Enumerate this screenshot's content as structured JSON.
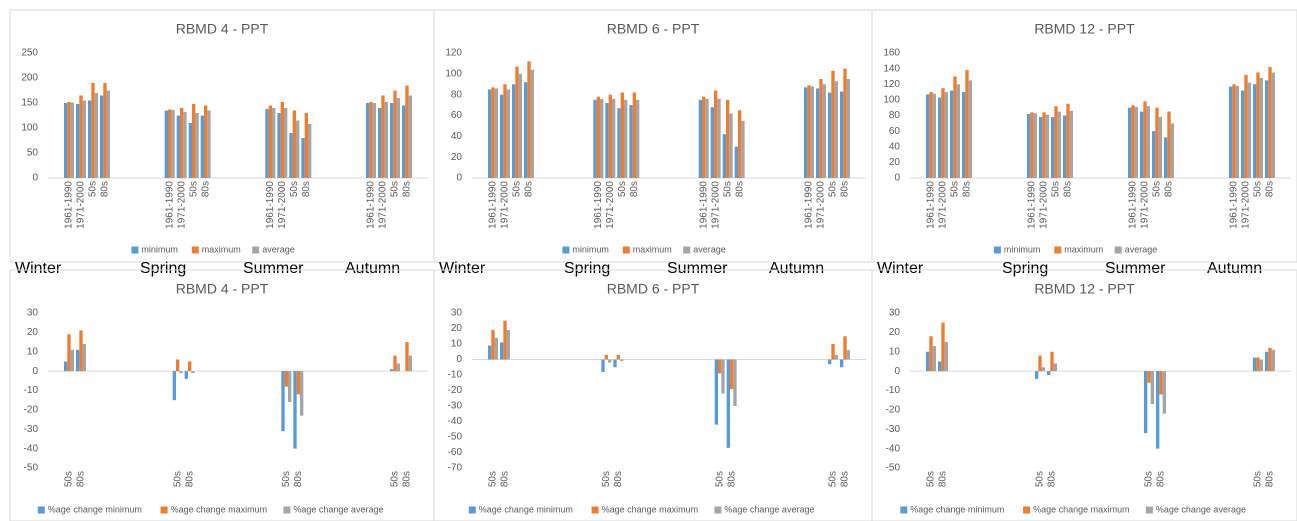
{
  "chart_data": [
    {
      "type": "bar",
      "title": "RBMD 4 - PPT",
      "categories": [
        "1961-1990",
        "1971-2000",
        "50s",
        "80s",
        "1961-1990",
        "1971-2000",
        "50s",
        "80s",
        "1961-1990",
        "1971-2000",
        "50s",
        "80s",
        "1961-1990",
        "1971-2000",
        "50s",
        "80s"
      ],
      "series": [
        {
          "name": "minimum",
          "color": "#5b9bd5",
          "values": [
            150,
            148,
            155,
            165,
            135,
            125,
            110,
            125,
            138,
            130,
            90,
            80,
            150,
            140,
            150,
            145
          ]
        },
        {
          "name": "maximum",
          "color": "#ed7d31",
          "values": [
            152,
            165,
            190,
            190,
            137,
            140,
            148,
            145,
            145,
            152,
            135,
            130,
            152,
            165,
            175,
            185
          ]
        },
        {
          "name": "average",
          "color": "#a5a5a5",
          "values": [
            151,
            155,
            170,
            175,
            136,
            132,
            130,
            135,
            140,
            140,
            115,
            108,
            150,
            152,
            160,
            165
          ]
        }
      ],
      "ylim": [
        0,
        250
      ],
      "yticks": [
        0,
        50,
        100,
        150,
        200,
        250
      ],
      "grid": false,
      "legend": "bottom",
      "annotations": [
        "Winter",
        "Spring",
        "Summer",
        "Autumn"
      ]
    },
    {
      "type": "bar",
      "title": "RBMD 6 - PPT",
      "categories": [
        "1961-1990",
        "1971-2000",
        "50s",
        "80s",
        "1961-1990",
        "1971-2000",
        "50s",
        "80s",
        "1961-1990",
        "1971-2000",
        "50s",
        "80s",
        "1961-1990",
        "1971-2000",
        "50s",
        "80s"
      ],
      "series": [
        {
          "name": "minimum",
          "color": "#5b9bd5",
          "values": [
            85,
            80,
            90,
            92,
            75,
            72,
            67,
            70,
            75,
            68,
            42,
            30,
            87,
            86,
            82,
            83
          ]
        },
        {
          "name": "maximum",
          "color": "#ed7d31",
          "values": [
            87,
            90,
            107,
            112,
            78,
            80,
            82,
            82,
            78,
            84,
            75,
            65,
            89,
            95,
            103,
            105
          ]
        },
        {
          "name": "average",
          "color": "#a5a5a5",
          "values": [
            86,
            85,
            100,
            104,
            76,
            76,
            75,
            75,
            76,
            76,
            62,
            55,
            88,
            90,
            93,
            95
          ]
        }
      ],
      "ylim": [
        0,
        120
      ],
      "yticks": [
        0,
        20,
        40,
        60,
        80,
        100,
        120
      ],
      "grid": false,
      "legend": "bottom",
      "annotations": [
        "Winter",
        "Spring",
        "Summer",
        "Autumn"
      ]
    },
    {
      "type": "bar",
      "title": "RBMD 12 - PPT",
      "categories": [
        "1961-1990",
        "1971-2000",
        "50s",
        "80s",
        "1961-1990",
        "1971-2000",
        "50s",
        "80s",
        "1961-1990",
        "1971-2000",
        "50s",
        "80s",
        "1961-1990",
        "1971-2000",
        "50s",
        "80s"
      ],
      "series": [
        {
          "name": "minimum",
          "color": "#5b9bd5",
          "values": [
            107,
            103,
            112,
            110,
            82,
            78,
            78,
            80,
            90,
            85,
            60,
            52,
            117,
            112,
            120,
            125
          ]
        },
        {
          "name": "maximum",
          "color": "#ed7d31",
          "values": [
            110,
            115,
            130,
            138,
            84,
            84,
            92,
            95,
            93,
            98,
            90,
            85,
            120,
            132,
            135,
            142
          ]
        },
        {
          "name": "average",
          "color": "#a5a5a5",
          "values": [
            108,
            110,
            120,
            125,
            83,
            81,
            85,
            86,
            91,
            92,
            78,
            70,
            118,
            122,
            128,
            135
          ]
        }
      ],
      "ylim": [
        0,
        160
      ],
      "yticks": [
        0,
        20,
        40,
        60,
        80,
        100,
        120,
        140,
        160
      ],
      "grid": false,
      "legend": "bottom",
      "annotations": [
        "Winter",
        "Spring",
        "Summer",
        "Autumn"
      ]
    },
    {
      "type": "bar",
      "title": "RBMD 4 - PPT",
      "categories": [
        "50s",
        "80s",
        "50s",
        "80s",
        "50s",
        "80s",
        "50s",
        "80s"
      ],
      "series": [
        {
          "name": "%age change minimum",
          "color": "#5b9bd5",
          "values": [
            5,
            11,
            -15,
            -4,
            -31,
            -40,
            1,
            0
          ]
        },
        {
          "name": "%age change maximum",
          "color": "#ed7d31",
          "values": [
            19,
            21,
            6,
            5,
            -8,
            -12,
            8,
            15
          ]
        },
        {
          "name": "%age change average",
          "color": "#a5a5a5",
          "values": [
            11,
            14,
            -1,
            -1,
            -16,
            -23,
            4,
            8
          ]
        }
      ],
      "ylim": [
        -50,
        30
      ],
      "yticks": [
        -50,
        -40,
        -30,
        -20,
        -10,
        0,
        10,
        20,
        30
      ],
      "grid": false,
      "legend": "bottom"
    },
    {
      "type": "bar",
      "title": "RBMD 6 - PPT",
      "categories": [
        "50s",
        "80s",
        "50s",
        "80s",
        "50s",
        "80s",
        "50s",
        "80s"
      ],
      "series": [
        {
          "name": "%age change minimum",
          "color": "#5b9bd5",
          "values": [
            9,
            11,
            -8,
            -5,
            -42,
            -57,
            -3,
            -5
          ]
        },
        {
          "name": "%age change maximum",
          "color": "#ed7d31",
          "values": [
            19,
            25,
            3,
            3,
            -9,
            -19,
            10,
            15
          ]
        },
        {
          "name": "%age change average",
          "color": "#a5a5a5",
          "values": [
            14,
            19,
            -2,
            -1,
            -22,
            -30,
            3,
            6
          ]
        }
      ],
      "ylim": [
        -70,
        30
      ],
      "yticks": [
        -70,
        -60,
        -50,
        -40,
        -30,
        -20,
        -10,
        0,
        10,
        20,
        30
      ],
      "grid": false,
      "legend": "bottom"
    },
    {
      "type": "bar",
      "title": "RBMD 12 - PPT",
      "categories": [
        "50s",
        "80s",
        "50s",
        "80s",
        "50s",
        "80s",
        "50s",
        "80s"
      ],
      "series": [
        {
          "name": "%age change minimum",
          "color": "#5b9bd5",
          "values": [
            10,
            5,
            -4,
            -2,
            -32,
            -40,
            7,
            10
          ]
        },
        {
          "name": "%age change maximum",
          "color": "#ed7d31",
          "values": [
            18,
            25,
            8,
            10,
            -6,
            -12,
            7,
            12
          ]
        },
        {
          "name": "%age change average",
          "color": "#a5a5a5",
          "values": [
            13,
            15,
            2,
            4,
            -17,
            -22,
            6,
            11
          ]
        }
      ],
      "ylim": [
        -50,
        30
      ],
      "yticks": [
        -50,
        -40,
        -30,
        -20,
        -10,
        0,
        10,
        20,
        30
      ],
      "grid": false,
      "legend": "bottom"
    }
  ]
}
